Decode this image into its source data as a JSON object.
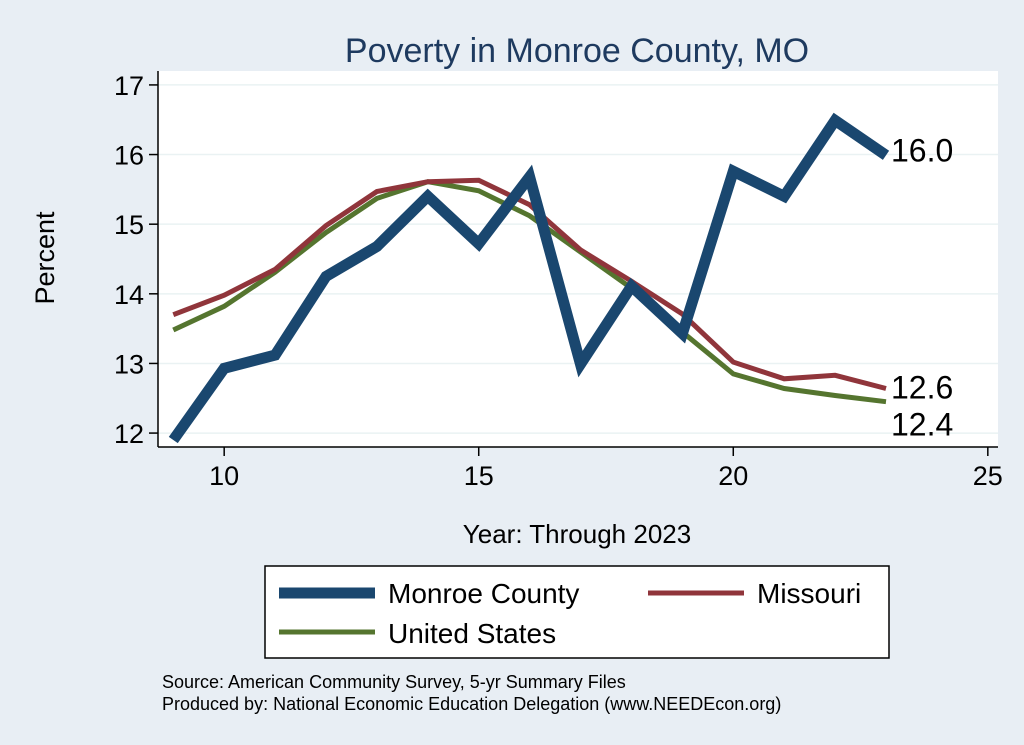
{
  "chart_data": {
    "type": "line",
    "title": "Poverty in Monroe County, MO",
    "xlabel": "Year: Through 2023",
    "ylabel": "Percent",
    "xlim": [
      8.7,
      25.2
    ],
    "ylim": [
      11.8,
      17.2
    ],
    "xticks": [
      10,
      15,
      20,
      25
    ],
    "yticks": [
      12,
      13,
      14,
      15,
      16,
      17
    ],
    "grid": true,
    "legend_position": "bottom",
    "x": [
      9,
      10,
      11,
      12,
      13,
      14,
      15,
      16,
      17,
      18,
      19,
      20,
      21,
      22,
      23
    ],
    "series": [
      {
        "name": "Monroe County",
        "color": "#1a476f",
        "values": [
          11.9,
          12.93,
          13.12,
          14.25,
          14.68,
          15.4,
          14.72,
          15.68,
          12.99,
          14.11,
          13.43,
          15.76,
          15.4,
          16.49,
          15.99
        ],
        "end_label": "16.0"
      },
      {
        "name": "Missouri",
        "color": "#90353b",
        "values": [
          13.7,
          13.98,
          14.35,
          14.98,
          15.47,
          15.61,
          15.63,
          15.28,
          14.63,
          14.18,
          13.71,
          13.02,
          12.78,
          12.83,
          12.64
        ],
        "end_label": "12.6"
      },
      {
        "name": "United States",
        "color": "#55752f",
        "values": [
          13.48,
          13.82,
          14.31,
          14.88,
          15.37,
          15.61,
          15.48,
          15.12,
          14.6,
          14.08,
          13.45,
          12.85,
          12.64,
          12.54,
          12.45
        ],
        "end_label": "12.4"
      }
    ]
  },
  "footer": {
    "source": "Source: American Community Survey, 5-yr Summary Files",
    "produced": "Produced by: National Economic Education Delegation (www.NEEDEcon.org)"
  }
}
